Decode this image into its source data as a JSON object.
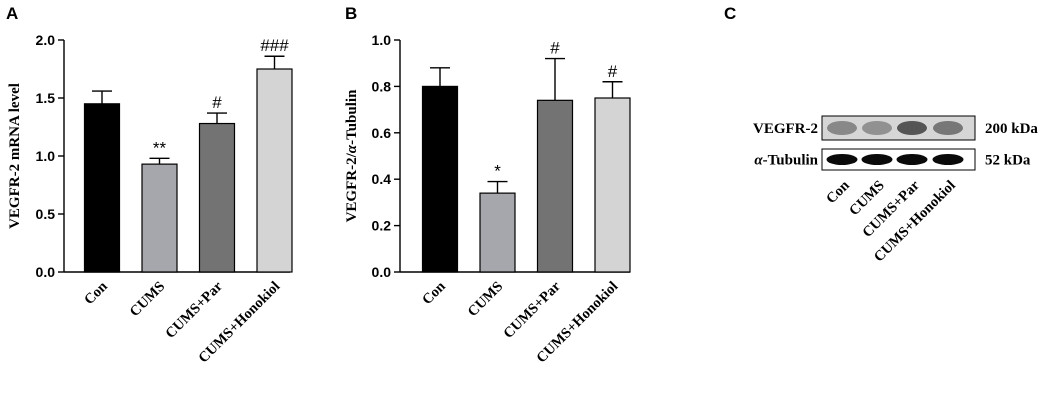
{
  "colors": {
    "con": "#000000",
    "cums": "#a6a6ad",
    "cums_par": "#737373",
    "cums_honokiol": "#d4d4d4"
  },
  "chart_data": [
    {
      "panel": "A",
      "type": "bar",
      "ylabel": "VEGFR-2 mRNA level",
      "ylim": [
        0,
        2.0
      ],
      "yticks": [
        "0.0",
        "0.5",
        "1.0",
        "1.5",
        "2.0"
      ],
      "categories": [
        "Con",
        "CUMS",
        "CUMS+Par",
        "CUMS+Honokiol"
      ],
      "values": [
        1.45,
        0.93,
        1.28,
        1.75
      ],
      "errors": [
        0.11,
        0.05,
        0.09,
        0.11
      ],
      "annotations": [
        "",
        "**",
        "#",
        "###"
      ]
    },
    {
      "panel": "B",
      "type": "bar",
      "ylabel_prefix": "VEGFR-2/",
      "ylabel_italic": "α",
      "ylabel_suffix": "-Tubulin",
      "ylim": [
        0,
        1.0
      ],
      "yticks": [
        "0.0",
        "0.2",
        "0.4",
        "0.6",
        "0.8",
        "1.0"
      ],
      "categories": [
        "Con",
        "CUMS",
        "CUMS+Par",
        "CUMS+Honokiol"
      ],
      "values": [
        0.8,
        0.34,
        0.74,
        0.75
      ],
      "errors": [
        0.08,
        0.05,
        0.18,
        0.07
      ],
      "annotations": [
        "",
        "*",
        "#",
        "#"
      ]
    }
  ],
  "blot": {
    "panel": "C",
    "rows": [
      {
        "protein_italic": "",
        "protein": "VEGFR-2",
        "size": "200 kDa"
      },
      {
        "protein_italic": "α",
        "protein": "-Tubulin",
        "size": "52 kDa"
      }
    ],
    "lanes": [
      "Con",
      "CUMS",
      "CUMS+Par",
      "CUMS+Honokiol"
    ]
  }
}
